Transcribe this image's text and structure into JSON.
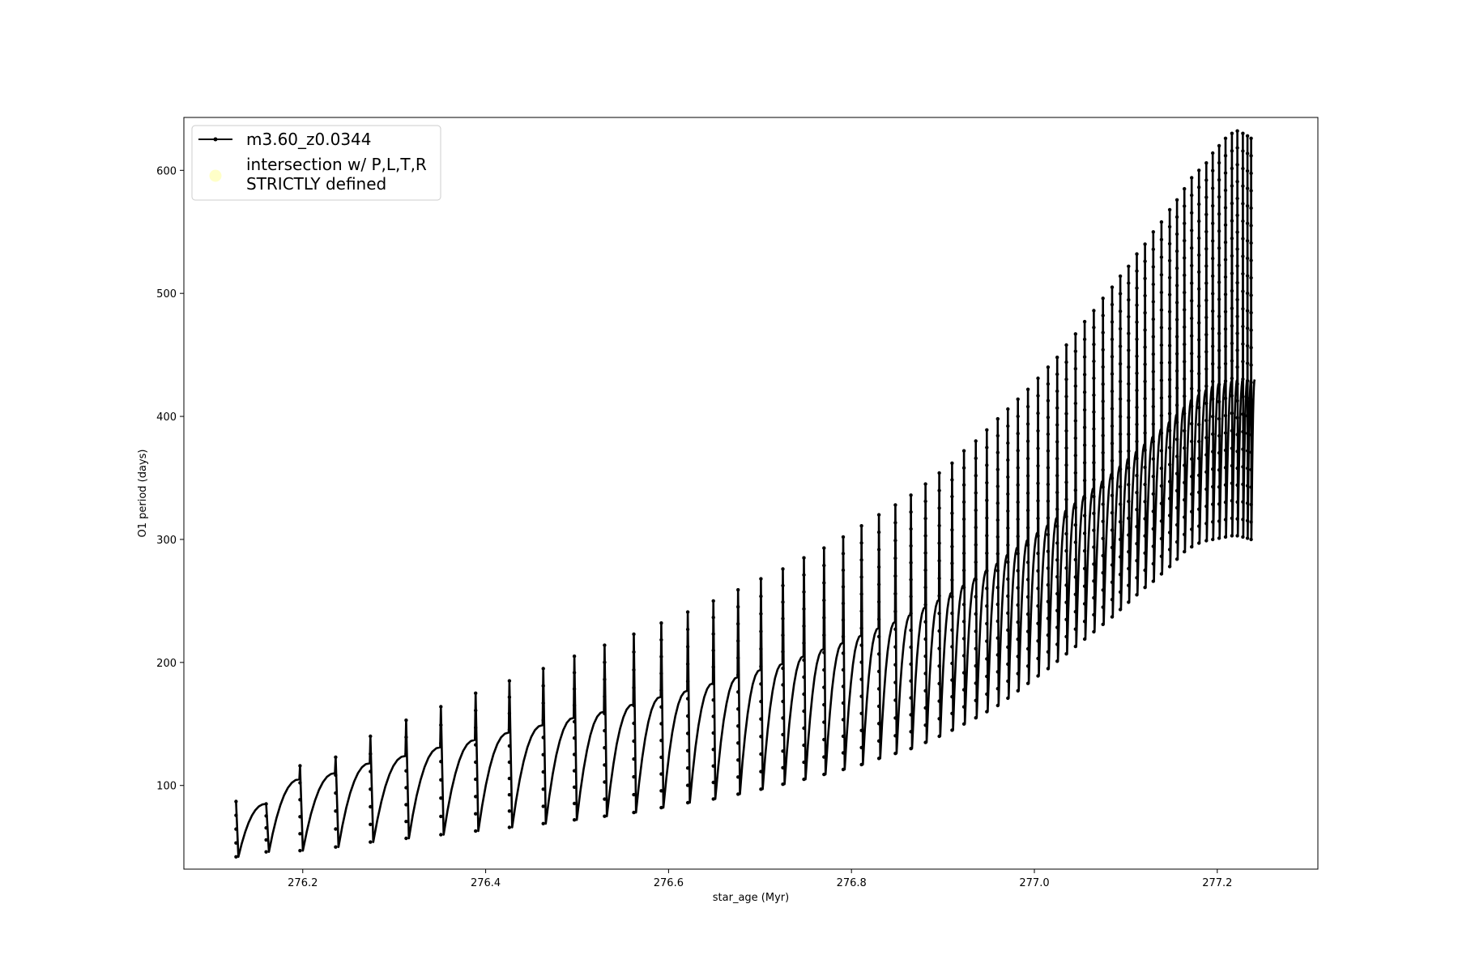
{
  "chart_data": {
    "type": "line",
    "title": "",
    "xlabel": "star_age (Myr)",
    "ylabel": "O1 period (days)",
    "xlim": [
      276.07,
      277.31
    ],
    "ylim": [
      32,
      643
    ],
    "x_ticks": [
      276.2,
      276.4,
      276.6,
      276.8,
      277.0,
      277.2
    ],
    "x_tick_labels": [
      "276.2",
      "276.4",
      "276.6",
      "276.8",
      "277.0",
      "277.2"
    ],
    "y_ticks": [
      100,
      200,
      300,
      400,
      500,
      600
    ],
    "y_tick_labels": [
      "100",
      "200",
      "300",
      "400",
      "500",
      "600"
    ],
    "grid": false,
    "legend_position": "top-left",
    "series": [
      {
        "name": "m3.60_z0.0344",
        "color": "#000000",
        "marker": "dot",
        "style": "line with point markers",
        "cycle_start_x": [
          276.127,
          276.16,
          276.197,
          276.236,
          276.274,
          276.313,
          276.351,
          276.389,
          276.426,
          276.463,
          276.497,
          276.53,
          276.562,
          276.592,
          276.621,
          276.649,
          276.676,
          276.701,
          276.725,
          276.748,
          276.77,
          276.791,
          276.811,
          276.83,
          276.848,
          276.865,
          276.881,
          276.896,
          276.91,
          276.923,
          276.936,
          276.948,
          276.96,
          276.971,
          276.982,
          276.993,
          277.004,
          277.015,
          277.025,
          277.035,
          277.045,
          277.055,
          277.065,
          277.075,
          277.085,
          277.094,
          277.103,
          277.112,
          277.121,
          277.13,
          277.139,
          277.148,
          277.156,
          277.164,
          277.172,
          277.18,
          277.188,
          277.195,
          277.202,
          277.209,
          277.216,
          277.222,
          277.228,
          277.233,
          277.237
        ],
        "cycle_peak_y": [
          87,
          85,
          116,
          123,
          140,
          153,
          164,
          175,
          185,
          195,
          205,
          214,
          223,
          232,
          241,
          250,
          259,
          268,
          276,
          285,
          293,
          302,
          311,
          320,
          328,
          336,
          345,
          354,
          362,
          372,
          380,
          389,
          398,
          406,
          414,
          422,
          431,
          440,
          448,
          458,
          467,
          477,
          486,
          496,
          505,
          514,
          522,
          532,
          540,
          550,
          558,
          568,
          576,
          585,
          594,
          600,
          606,
          614,
          620,
          626,
          630,
          632,
          630,
          628,
          626
        ],
        "cycle_min_y": [
          42,
          46,
          47,
          50,
          54,
          57,
          60,
          63,
          66,
          69,
          72,
          75,
          78,
          82,
          86,
          89,
          93,
          97,
          101,
          105,
          109,
          113,
          117,
          122,
          126,
          130,
          135,
          140,
          145,
          150,
          155,
          160,
          165,
          171,
          177,
          183,
          189,
          195,
          201,
          207,
          213,
          219,
          225,
          231,
          237,
          243,
          249,
          255,
          261,
          266,
          272,
          278,
          284,
          290,
          294,
          297,
          299,
          300,
          301,
          302,
          303,
          303,
          302,
          301,
          300
        ],
        "cycle_end_y": [
          85,
          105,
          110,
          118,
          124,
          131,
          137,
          143,
          149,
          155,
          160,
          166,
          172,
          177,
          183,
          188,
          194,
          199,
          205,
          211,
          216,
          222,
          228,
          233,
          239,
          245,
          251,
          257,
          263,
          269,
          275,
          281,
          288,
          294,
          300,
          306,
          312,
          318,
          324,
          330,
          336,
          342,
          348,
          354,
          360,
          366,
          372,
          378,
          384,
          390,
          396,
          402,
          408,
          414,
          418,
          422,
          425,
          427,
          428,
          429,
          430,
          430,
          430,
          430,
          430
        ]
      },
      {
        "name": "intersection w/ P,L,T,R\nSTRICTLY defined",
        "color": "#ffffb0",
        "marker": "circle",
        "points": []
      }
    ]
  },
  "legend": {
    "entry1": "m3.60_z0.0344",
    "entry2_line1": "intersection w/ P,L,T,R",
    "entry2_line2": "STRICTLY defined"
  }
}
